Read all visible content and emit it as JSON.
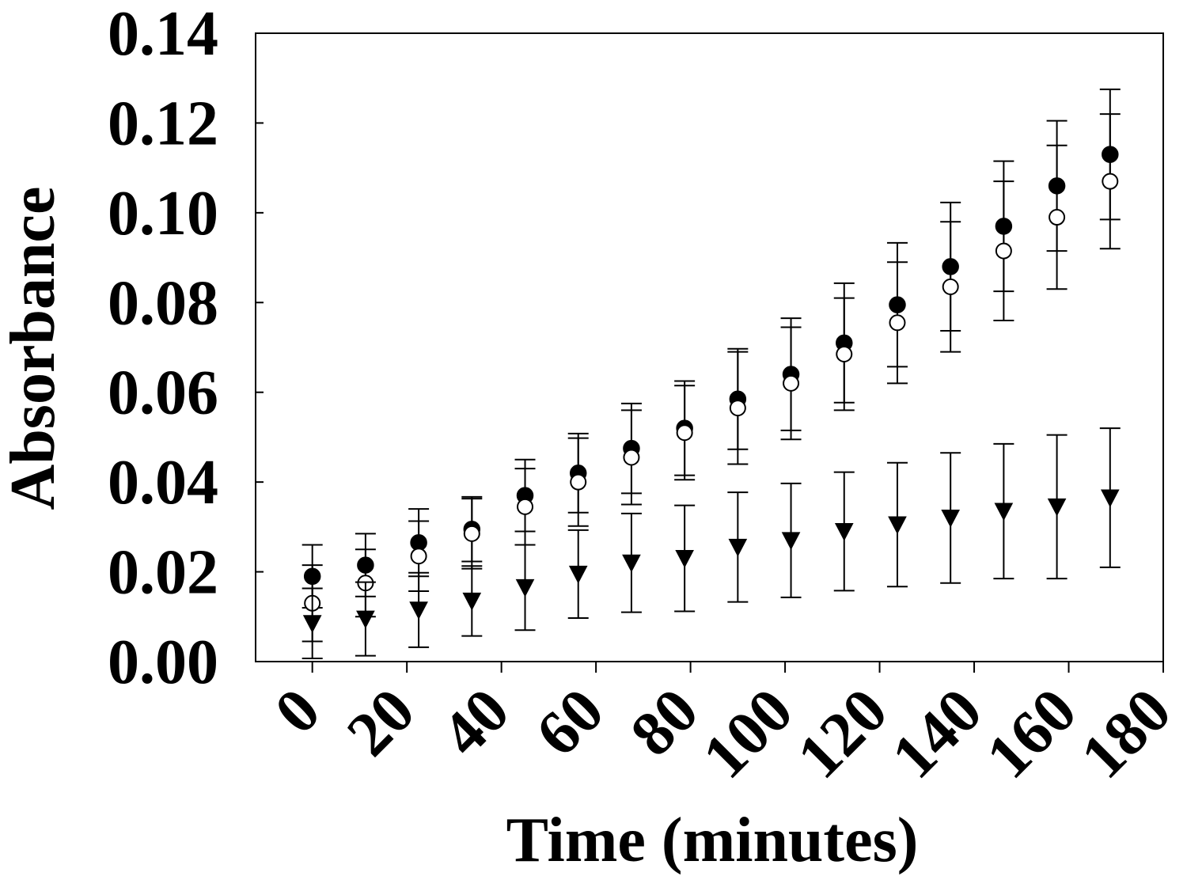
{
  "chart_data": {
    "type": "scatter",
    "title": "",
    "xlabel": "Time (minutes)",
    "ylabel": "Absorbance",
    "xlim": [
      -12,
      180
    ],
    "ylim": [
      0,
      0.14
    ],
    "x_ticks": [
      "0",
      "20",
      "40",
      "60",
      "80",
      "100",
      "120",
      "140",
      "160",
      "180"
    ],
    "y_ticks": [
      "0.00",
      "0.02",
      "0.04",
      "0.06",
      "0.08",
      "0.10",
      "0.12",
      "0.14"
    ],
    "x_tick_values": [
      0,
      20,
      40,
      60,
      80,
      100,
      120,
      140,
      160,
      180
    ],
    "y_tick_values": [
      0,
      0.02,
      0.04,
      0.06,
      0.08,
      0.1,
      0.12,
      0.14
    ],
    "grid": false,
    "legend": "none",
    "x": [
      0,
      11.25,
      22.5,
      33.75,
      45,
      56.25,
      67.5,
      78.75,
      90,
      101.25,
      112.5,
      123.75,
      135,
      146.25,
      157.5,
      168.75
    ],
    "series": [
      {
        "marker": "filled-circle",
        "values": [
          0.019,
          0.0215,
          0.0265,
          0.0295,
          0.037,
          0.042,
          0.0475,
          0.052,
          0.0585,
          0.064,
          0.071,
          0.0795,
          0.088,
          0.097,
          0.106,
          0.113
        ],
        "error": [
          0.007,
          0.007,
          0.0075,
          0.0072,
          0.008,
          0.0088,
          0.01,
          0.0105,
          0.0112,
          0.0125,
          0.0133,
          0.0138,
          0.0143,
          0.0145,
          0.0145,
          0.0145
        ]
      },
      {
        "marker": "open-circle",
        "values": [
          0.013,
          0.0175,
          0.0235,
          0.0285,
          0.0345,
          0.04,
          0.0455,
          0.051,
          0.0565,
          0.062,
          0.0685,
          0.0755,
          0.0835,
          0.0915,
          0.099,
          0.107
        ],
        "error": [
          0.0085,
          0.0075,
          0.0078,
          0.0078,
          0.0085,
          0.0098,
          0.0105,
          0.0105,
          0.0125,
          0.0125,
          0.0125,
          0.0135,
          0.0145,
          0.0155,
          0.016,
          0.015
        ]
      },
      {
        "marker": "filled-triangle-down",
        "values": [
          0.0085,
          0.0095,
          0.0115,
          0.0135,
          0.0165,
          0.0195,
          0.022,
          0.023,
          0.0255,
          0.027,
          0.029,
          0.0305,
          0.032,
          0.0335,
          0.0345,
          0.0365
        ],
        "error": [
          0.0078,
          0.0082,
          0.0083,
          0.0078,
          0.0095,
          0.0098,
          0.011,
          0.0118,
          0.0122,
          0.0127,
          0.0132,
          0.0138,
          0.0145,
          0.015,
          0.016,
          0.0155
        ]
      }
    ]
  },
  "colors": {
    "ink": "#000000",
    "background": "#ffffff"
  }
}
